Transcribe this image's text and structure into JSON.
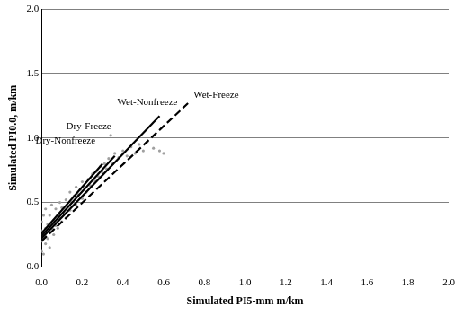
{
  "chart_data": {
    "type": "scatter",
    "x_label": "Simulated PI5-mm m/km",
    "y_label": "Simulated PI0.0, m/km",
    "xlim": [
      0,
      2
    ],
    "ylim": [
      0,
      2
    ],
    "xticks": [
      {
        "value": 0,
        "label": "0.0"
      },
      0.2,
      0.4,
      0.6,
      0.8,
      {
        "value": 1,
        "label": "1.0"
      },
      1.2,
      1.4,
      1.6,
      1.8,
      {
        "value": 2,
        "label": "2.0"
      }
    ],
    "yticks": [
      {
        "value": 0,
        "label": "0.0"
      },
      0.5,
      {
        "value": 1,
        "label": "1.0"
      },
      1.5,
      {
        "value": 2,
        "label": "2.0"
      }
    ],
    "grid": true,
    "series": [
      {
        "type": "scatter",
        "marker": "circle",
        "color": "#a0a0a0",
        "x": [
          0,
          0,
          0,
          0,
          0.01,
          0.01,
          0.01,
          0.02,
          0.02,
          0.02,
          0.03,
          0.03,
          0.04,
          0.04,
          0.04,
          0.05,
          0.05,
          0.06,
          0.06,
          0.07,
          0.07,
          0.08,
          0.08,
          0.09,
          0.09,
          0.1,
          0.1,
          0.11,
          0.12,
          0.12,
          0.13,
          0.14,
          0.14,
          0.15,
          0.16,
          0.17,
          0.17,
          0.18,
          0.19,
          0.2,
          0.2,
          0.21,
          0.22,
          0.23,
          0.24,
          0.25,
          0.26,
          0.27,
          0.28,
          0.29,
          0.3,
          0.31,
          0.32,
          0.33,
          0.34,
          0.35,
          0.36,
          0.38,
          0.4,
          0.42,
          0.44,
          0.46,
          0.48,
          0.5,
          0.52,
          0.55,
          0.58,
          0.6
        ],
        "values": [
          0.12,
          0.2,
          0.28,
          0.35,
          0.1,
          0.25,
          0.4,
          0.18,
          0.3,
          0.45,
          0.22,
          0.33,
          0.15,
          0.27,
          0.4,
          0.3,
          0.48,
          0.25,
          0.36,
          0.32,
          0.45,
          0.3,
          0.4,
          0.38,
          0.5,
          0.35,
          0.46,
          0.42,
          0.38,
          0.52,
          0.47,
          0.44,
          0.58,
          0.5,
          0.55,
          0.48,
          0.62,
          0.56,
          0.6,
          0.53,
          0.66,
          0.62,
          0.58,
          0.68,
          0.63,
          0.72,
          0.67,
          0.74,
          0.7,
          0.78,
          0.73,
          0.8,
          0.76,
          0.84,
          1.02,
          0.8,
          0.88,
          0.85,
          0.9,
          0.86,
          0.93,
          0.88,
          0.95,
          0.9,
          0.97,
          0.92,
          0.9,
          0.88
        ]
      },
      {
        "name": "Dry-Nonfreeze",
        "type": "line",
        "line_style": "solid",
        "color": "#000000",
        "x": [
          0,
          0.3
        ],
        "values": [
          0.26,
          0.8
        ]
      },
      {
        "name": "Dry-Freeze",
        "type": "line",
        "line_style": "solid",
        "color": "#000000",
        "x": [
          0,
          0.36
        ],
        "values": [
          0.24,
          0.86
        ]
      },
      {
        "name": "Wet-Nonfreeze",
        "type": "line",
        "line_style": "solid",
        "color": "#000000",
        "x": [
          0,
          0.58
        ],
        "values": [
          0.22,
          1.17
        ]
      },
      {
        "name": "Wet-Freeze",
        "type": "line",
        "line_style": "dashed",
        "color": "#000000",
        "x": [
          0,
          0.72
        ],
        "values": [
          0.2,
          1.27
        ]
      }
    ]
  }
}
